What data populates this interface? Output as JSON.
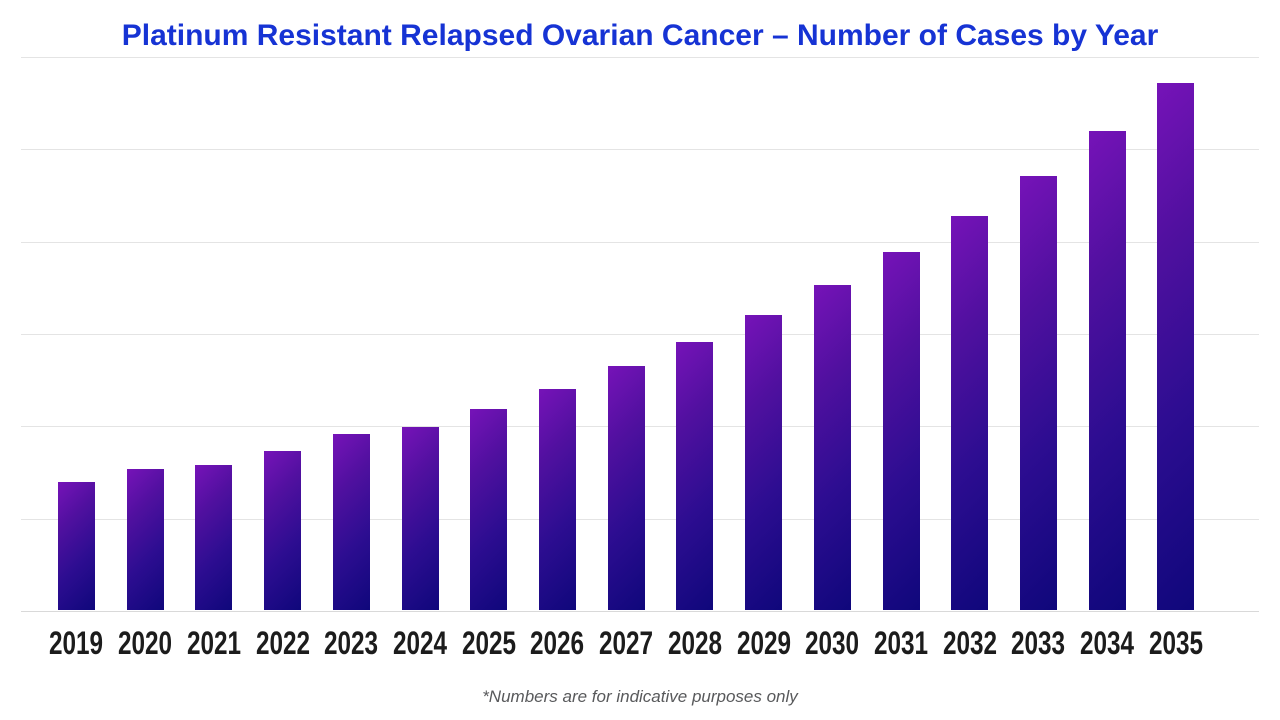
{
  "title": "Platinum Resistant Relapsed Ovarian Cancer – Number of Cases by Year",
  "footnote": "*Numbers are for indicative purposes only",
  "colors": {
    "background": "#ffffff",
    "title": "#1633d4",
    "x_label": "#1c1c1c",
    "footnote": "#58595b",
    "gridline": "#e4e4e4",
    "axis_line": "#d9d9d9",
    "bar_gradient": [
      "#7613b8",
      "#50109f",
      "#2d0d91",
      "#0f077b"
    ]
  },
  "chart_data": {
    "type": "bar",
    "title": "Platinum Resistant Relapsed Ovarian Cancer – Number of Cases by Year",
    "categories": [
      "2019",
      "2020",
      "2021",
      "2022",
      "2023",
      "2024",
      "2025",
      "2026",
      "2027",
      "2028",
      "2029",
      "2030",
      "2031",
      "2032",
      "2033",
      "2034",
      "2035"
    ],
    "values": [
      139,
      153,
      157,
      172,
      191,
      198,
      218,
      239,
      264,
      290,
      320,
      352,
      388,
      427,
      470,
      519,
      571
    ],
    "xlabel": "",
    "ylabel": "",
    "ylim": [
      0,
      600
    ],
    "gridline_interval": 100,
    "gridlines": true,
    "y_axis_labels_visible": false,
    "legend_position": "none",
    "annotation": "*Numbers are for indicative purposes only"
  }
}
